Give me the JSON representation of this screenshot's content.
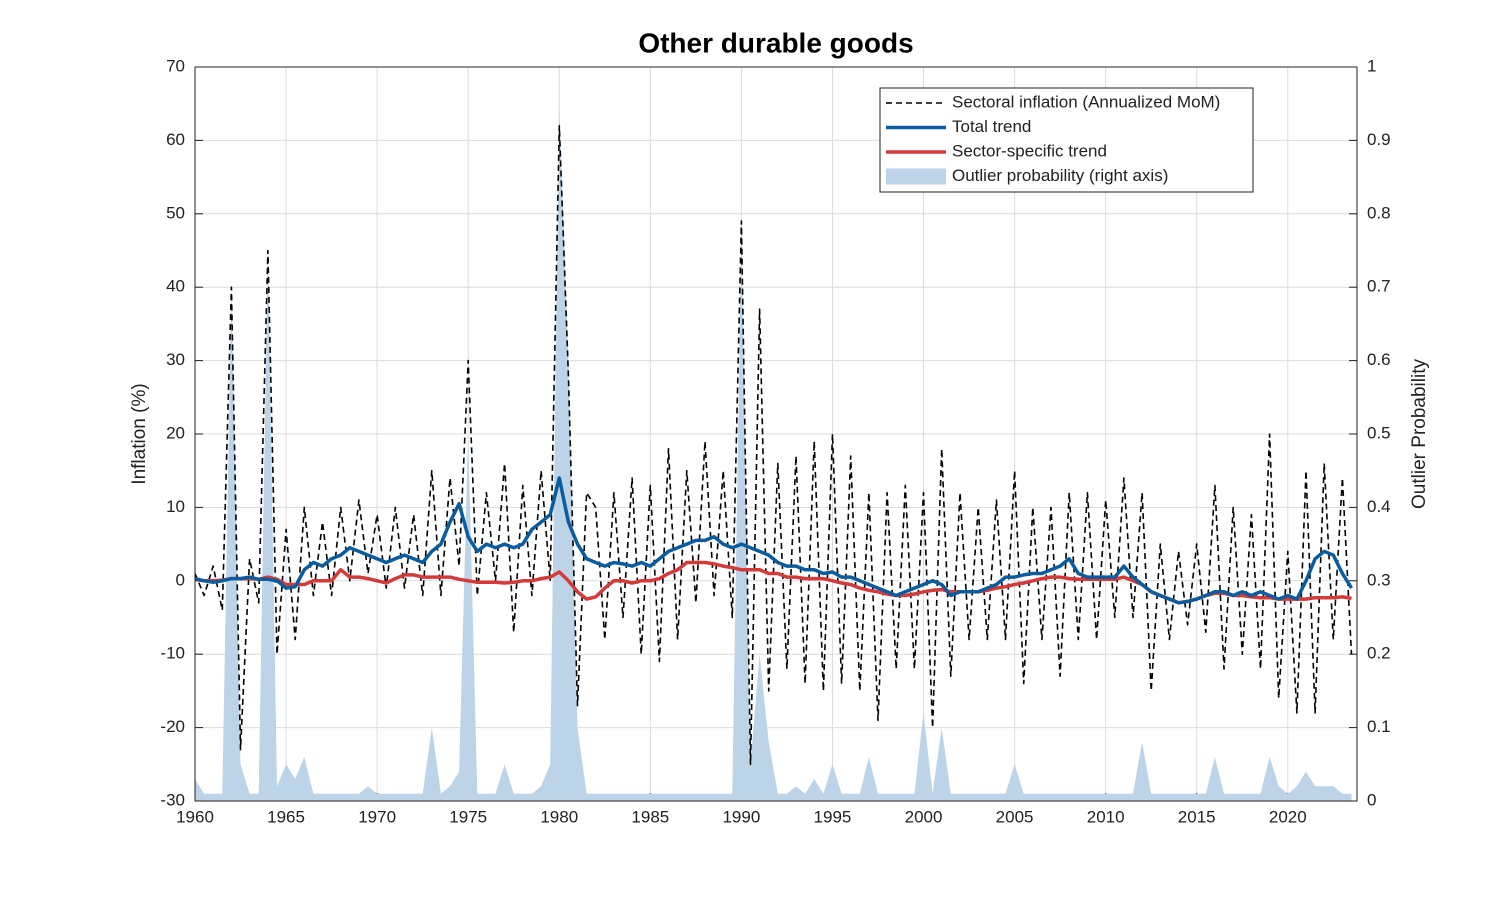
{
  "chart_data": {
    "type": "line",
    "title": "Other durable goods",
    "y_label": "Inflation (%)",
    "y2_label": "Outlier Probability",
    "xlim": [
      1960,
      2023.8
    ],
    "xticks": [
      1960,
      1965,
      1970,
      1975,
      1980,
      1985,
      1990,
      1995,
      2000,
      2005,
      2010,
      2015,
      2020
    ],
    "ylim": [
      -30,
      70
    ],
    "yticks": [
      -30,
      -20,
      -10,
      0,
      10,
      20,
      30,
      40,
      50,
      60,
      70
    ],
    "y2lim": [
      0,
      1
    ],
    "y2ticks": [
      0,
      0.1,
      0.2,
      0.3,
      0.4,
      0.5,
      0.6,
      0.7,
      0.8,
      0.9,
      1
    ],
    "grid": true,
    "legend": "upper right",
    "x": [
      1960,
      1960.5,
      1961,
      1961.5,
      1962,
      1962.5,
      1963,
      1963.5,
      1964,
      1964.5,
      1965,
      1965.5,
      1966,
      1966.5,
      1967,
      1967.5,
      1968,
      1968.5,
      1969,
      1969.5,
      1970,
      1970.5,
      1971,
      1971.5,
      1972,
      1972.5,
      1973,
      1973.5,
      1974,
      1974.5,
      1975,
      1975.5,
      1976,
      1976.5,
      1977,
      1977.5,
      1978,
      1978.5,
      1979,
      1979.5,
      1980,
      1980.5,
      1981,
      1981.5,
      1982,
      1982.5,
      1983,
      1983.5,
      1984,
      1984.5,
      1985,
      1985.5,
      1986,
      1986.5,
      1987,
      1987.5,
      1988,
      1988.5,
      1989,
      1989.5,
      1990,
      1990.5,
      1991,
      1991.5,
      1992,
      1992.5,
      1993,
      1993.5,
      1994,
      1994.5,
      1995,
      1995.5,
      1996,
      1996.5,
      1997,
      1997.5,
      1998,
      1998.5,
      1999,
      1999.5,
      2000,
      2000.5,
      2001,
      2001.5,
      2002,
      2002.5,
      2003,
      2003.5,
      2004,
      2004.5,
      2005,
      2005.5,
      2006,
      2006.5,
      2007,
      2007.5,
      2008,
      2008.5,
      2009,
      2009.5,
      2010,
      2010.5,
      2011,
      2011.5,
      2012,
      2012.5,
      2013,
      2013.5,
      2014,
      2014.5,
      2015,
      2015.5,
      2016,
      2016.5,
      2017,
      2017.5,
      2018,
      2018.5,
      2019,
      2019.5,
      2020,
      2020.5,
      2021,
      2021.5,
      2022,
      2022.5,
      2023,
      2023.5
    ],
    "series": [
      {
        "name": "Outlier probability (right axis)",
        "color": "#bcd3e8",
        "style": "area",
        "axis": "y2",
        "values": [
          0.03,
          0.01,
          0.01,
          0.01,
          0.7,
          0.05,
          0.01,
          0.01,
          0.75,
          0.02,
          0.05,
          0.03,
          0.06,
          0.01,
          0.01,
          0.01,
          0.01,
          0.01,
          0.01,
          0.02,
          0.01,
          0.01,
          0.01,
          0.01,
          0.01,
          0.01,
          0.1,
          0.01,
          0.02,
          0.04,
          0.5,
          0.01,
          0.01,
          0.01,
          0.05,
          0.01,
          0.01,
          0.01,
          0.02,
          0.05,
          0.95,
          0.6,
          0.1,
          0.01,
          0.01,
          0.01,
          0.01,
          0.01,
          0.01,
          0.01,
          0.01,
          0.01,
          0.01,
          0.01,
          0.01,
          0.01,
          0.01,
          0.01,
          0.01,
          0.01,
          0.78,
          0.05,
          0.2,
          0.08,
          0.01,
          0.01,
          0.02,
          0.01,
          0.03,
          0.01,
          0.05,
          0.01,
          0.01,
          0.01,
          0.06,
          0.01,
          0.01,
          0.01,
          0.01,
          0.01,
          0.12,
          0.01,
          0.1,
          0.01,
          0.01,
          0.01,
          0.01,
          0.01,
          0.01,
          0.01,
          0.05,
          0.01,
          0.01,
          0.01,
          0.01,
          0.01,
          0.01,
          0.01,
          0.01,
          0.01,
          0.01,
          0.01,
          0.01,
          0.01,
          0.08,
          0.01,
          0.01,
          0.01,
          0.01,
          0.01,
          0.01,
          0.01,
          0.06,
          0.01,
          0.01,
          0.01,
          0.01,
          0.01,
          0.06,
          0.02,
          0.01,
          0.02,
          0.04,
          0.02,
          0.02,
          0.02,
          0.01,
          0.01
        ]
      },
      {
        "name": "Sectoral inflation (Annualized MoM)",
        "color": "#000000",
        "style": "dashed",
        "values": [
          1,
          -2,
          2,
          -4,
          40,
          -23,
          3,
          -3,
          45,
          -10,
          7,
          -8,
          10,
          -2,
          8,
          -2,
          10,
          0,
          11,
          1,
          9,
          -1,
          10,
          -1,
          9,
          -2,
          15,
          -2,
          14,
          2,
          30,
          -2,
          12,
          0,
          16,
          -7,
          13,
          -2,
          15,
          0,
          62,
          28,
          -17,
          12,
          10,
          -8,
          12,
          -5,
          14,
          -10,
          13,
          -11,
          18,
          -8,
          15,
          -3,
          19,
          -2,
          15,
          -5,
          49,
          -25,
          37,
          -15,
          16,
          -12,
          17,
          -14,
          19,
          -15,
          20,
          -14,
          17,
          -15,
          12,
          -19,
          12,
          -12,
          13,
          -12,
          12,
          -20,
          18,
          -13,
          12,
          -8,
          10,
          -8,
          11,
          -8,
          15,
          -14,
          10,
          -8,
          10,
          -13,
          12,
          -8,
          12,
          -8,
          11,
          -5,
          14,
          -5,
          12,
          -15,
          5,
          -8,
          4,
          -6,
          5,
          -7,
          13,
          -12,
          10,
          -10,
          9,
          -12,
          20,
          -16,
          4,
          -18,
          15,
          -18,
          16,
          -8,
          14,
          -10
        ]
      },
      {
        "name": "Sector-specific trend",
        "color": "#d33a3a",
        "style": "solid",
        "values": [
          0.2,
          0,
          0,
          0.1,
          0.3,
          0.3,
          0.3,
          0.2,
          0.5,
          0.2,
          -0.5,
          -0.5,
          -0.5,
          0,
          0,
          0,
          1.5,
          0.5,
          0.5,
          0.3,
          0,
          -0.3,
          0.3,
          0.8,
          0.8,
          0.5,
          0.5,
          0.5,
          0.5,
          0.2,
          0,
          -0.2,
          -0.2,
          -0.2,
          -0.3,
          -0.2,
          0,
          0,
          0.3,
          0.5,
          1.2,
          0,
          -1.5,
          -2.5,
          -2.2,
          -1,
          0,
          0,
          -0.3,
          0,
          0,
          0.3,
          1,
          1.5,
          2.5,
          2.5,
          2.5,
          2.3,
          2,
          1.8,
          1.5,
          1.5,
          1.5,
          1,
          1,
          0.5,
          0.5,
          0.3,
          0.3,
          0.3,
          0,
          -0.3,
          -0.5,
          -1,
          -1.3,
          -1.5,
          -1.8,
          -2,
          -2,
          -1.8,
          -1.5,
          -1.3,
          -1.2,
          -1.5,
          -1.5,
          -1.5,
          -1.5,
          -1.3,
          -1,
          -0.8,
          -0.5,
          -0.3,
          0,
          0.3,
          0.5,
          0.5,
          0.3,
          0.2,
          0.2,
          0.2,
          0.2,
          0.2,
          0.5,
          0,
          -0.5,
          -1.5,
          -2,
          -2.5,
          -3,
          -2.8,
          -2.5,
          -2,
          -1.7,
          -1.7,
          -2,
          -2,
          -2.2,
          -2.3,
          -2.3,
          -2.5,
          -2.5,
          -2.5,
          -2.5,
          -2.3,
          -2.3,
          -2.3,
          -2.2,
          -2.4
        ]
      },
      {
        "name": "Total trend",
        "color": "#0b5c9e",
        "style": "solid",
        "values": [
          0.3,
          0,
          -0.2,
          0,
          0.3,
          0.3,
          0.5,
          0.2,
          0.2,
          0,
          -1,
          -0.8,
          1.5,
          2.5,
          2,
          3,
          3.5,
          4.5,
          4,
          3.5,
          3,
          2.5,
          3,
          3.5,
          3,
          2.5,
          4,
          5,
          8,
          10.5,
          6,
          4,
          5,
          4.5,
          5,
          4.5,
          5,
          7,
          8,
          9,
          14,
          8,
          5,
          3,
          2.5,
          2,
          2.5,
          2.3,
          2,
          2.5,
          2,
          3,
          4,
          4.5,
          5,
          5.5,
          5.5,
          6,
          5,
          4.5,
          5,
          4.5,
          4,
          3.5,
          2.5,
          2,
          2,
          1.5,
          1.5,
          1,
          1.2,
          0.5,
          0.5,
          0,
          -0.5,
          -1,
          -1.5,
          -2,
          -1.5,
          -1,
          -0.5,
          0,
          -0.5,
          -2,
          -1.5,
          -1.5,
          -1.5,
          -1,
          -0.5,
          0.5,
          0.5,
          0.8,
          1,
          1,
          1.5,
          2,
          3,
          1,
          0.5,
          0.5,
          0.5,
          0.5,
          2,
          0.5,
          -0.5,
          -1.5,
          -2,
          -2.5,
          -3,
          -2.8,
          -2.5,
          -2,
          -1.5,
          -1.5,
          -2,
          -1.5,
          -2,
          -1.5,
          -2,
          -2.5,
          -2,
          -2.5,
          0,
          3,
          4,
          3.5,
          1,
          -1
        ]
      }
    ]
  }
}
